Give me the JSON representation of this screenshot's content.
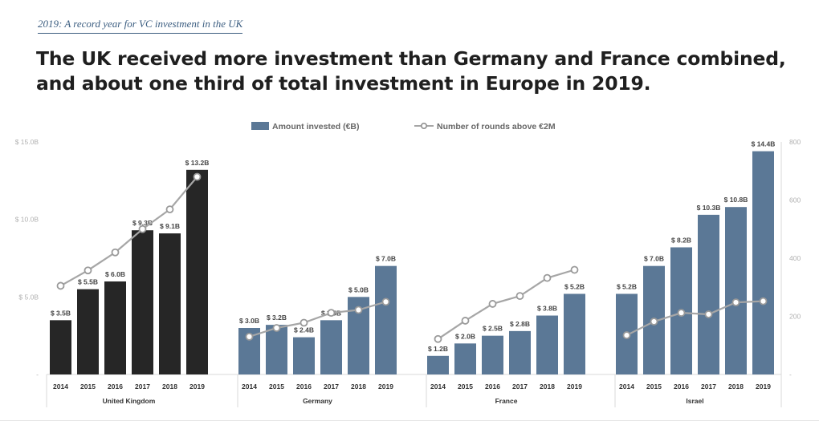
{
  "header": {
    "kicker": "2019: A record year for VC investment in the UK",
    "title": "The UK received more investment than Germany and France combined, and about one third of total investment in Europe in 2019."
  },
  "colors": {
    "uk_bar": "#262626",
    "other_bar": "#5b7896",
    "line": "#a6a6a6",
    "axis_text": "#b0b0b0"
  },
  "chart_data": {
    "type": "bar",
    "legend": {
      "bar_label": "Amount invested (€B)",
      "line_label": "Number of rounds above €2M",
      "position": "top-center"
    },
    "left_axis": {
      "ylim": [
        0,
        15
      ],
      "ticks": [
        0,
        5,
        10,
        15
      ],
      "tick_labels": [
        "-",
        "$ 5.0B",
        "$ 10.0B",
        "$ 15.0B"
      ]
    },
    "right_axis": {
      "ylim": [
        0,
        800
      ],
      "ticks": [
        0,
        200,
        400,
        600,
        800
      ],
      "tick_labels": [
        "-",
        "200",
        "400",
        "600",
        "800"
      ]
    },
    "grid": false,
    "groups": [
      {
        "name": "United Kingdom",
        "color": "#262626",
        "years": [
          "2014",
          "2015",
          "2016",
          "2017",
          "2018",
          "2019"
        ],
        "values": [
          3.5,
          5.5,
          6.0,
          9.3,
          9.1,
          13.2
        ],
        "labels": [
          "$ 3.5B",
          "$ 5.5B",
          "$ 6.0B",
          "$ 9.3B",
          "$ 9.1B",
          "$ 13.2B"
        ],
        "rounds": [
          305,
          358,
          420,
          500,
          568,
          680
        ]
      },
      {
        "name": "Germany",
        "color": "#5b7896",
        "years": [
          "2014",
          "2015",
          "2016",
          "2017",
          "2018",
          "2019"
        ],
        "values": [
          3.0,
          3.2,
          2.4,
          3.5,
          5.0,
          7.0
        ],
        "labels": [
          "$ 3.0B",
          "$ 3.2B",
          "$ 2.4B",
          "$ 3.5B",
          "$ 5.0B",
          "$ 7.0B"
        ],
        "rounds": [
          130,
          160,
          178,
          212,
          222,
          250
        ]
      },
      {
        "name": "France",
        "color": "#5b7896",
        "years": [
          "2014",
          "2015",
          "2016",
          "2017",
          "2018",
          "2019"
        ],
        "values": [
          1.2,
          2.0,
          2.5,
          2.8,
          3.8,
          5.2
        ],
        "labels": [
          "$ 1.2B",
          "$ 2.0B",
          "$ 2.5B",
          "$ 2.8B",
          "$ 3.8B",
          "$ 5.2B"
        ],
        "rounds": [
          122,
          185,
          243,
          270,
          332,
          360
        ]
      },
      {
        "name": "Israel",
        "color": "#5b7896",
        "years": [
          "2014",
          "2015",
          "2016",
          "2017",
          "2018",
          "2019"
        ],
        "values": [
          5.2,
          7.0,
          8.2,
          10.3,
          10.8,
          14.4
        ],
        "labels": [
          "$ 5.2B",
          "$ 7.0B",
          "$ 8.2B",
          "$ 10.3B",
          "$ 10.8B",
          "$ 14.4B"
        ],
        "rounds": [
          135,
          182,
          212,
          207,
          248,
          252
        ]
      }
    ]
  }
}
